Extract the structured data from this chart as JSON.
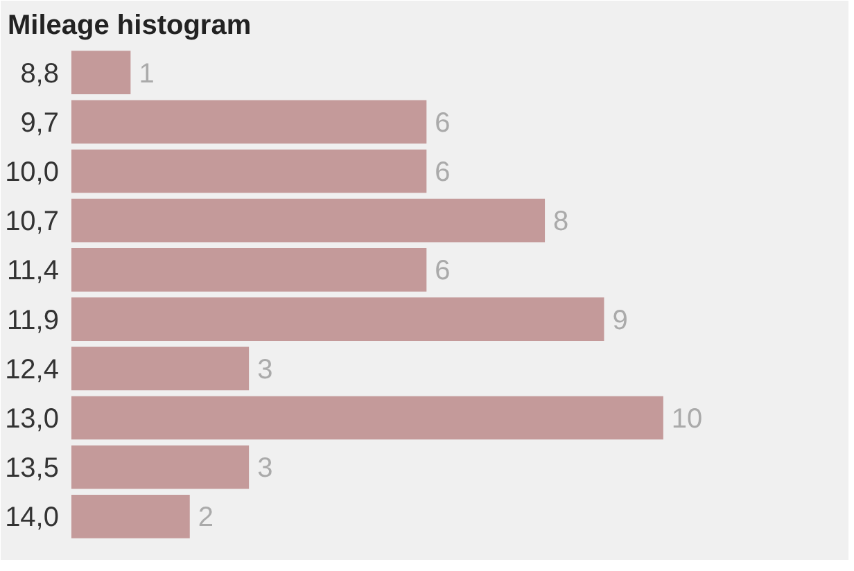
{
  "chart_data": {
    "type": "bar",
    "orientation": "horizontal",
    "title": "Mileage histogram",
    "categories": [
      "8,8",
      "9,7",
      "10,0",
      "10,7",
      "11,4",
      "11,9",
      "12,4",
      "13,0",
      "13,5",
      "14,0"
    ],
    "values": [
      1,
      6,
      6,
      8,
      6,
      9,
      3,
      10,
      3,
      2
    ],
    "color": "#c49a9a",
    "data_labels": true,
    "grid": false
  }
}
